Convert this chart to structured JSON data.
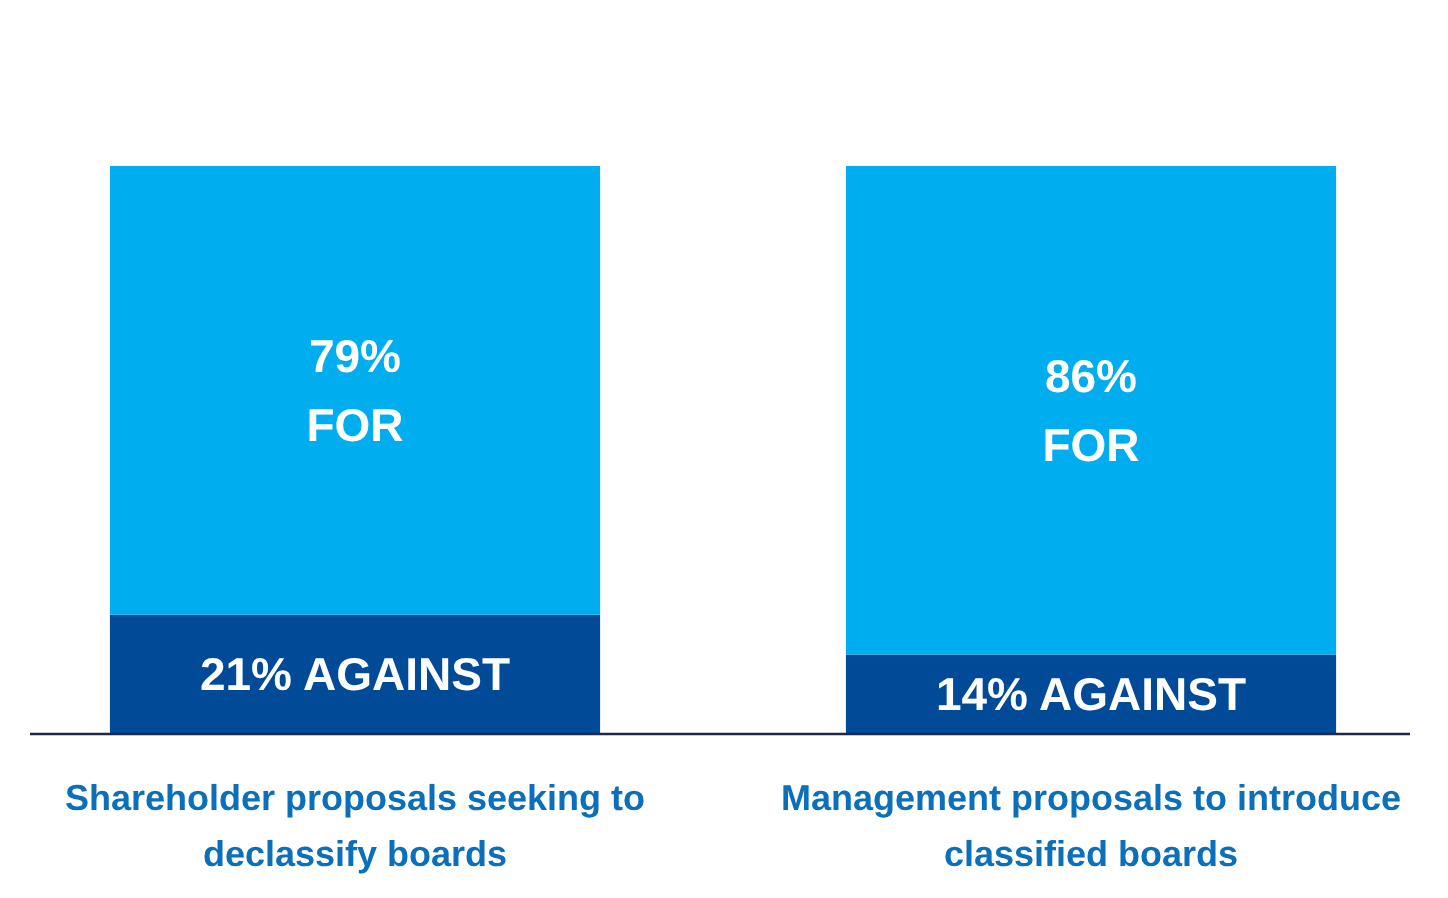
{
  "chart_data": {
    "type": "bar",
    "stacked": true,
    "categories": [
      "Shareholder proposals seeking to declassify boards",
      "Management proposals to introduce classified boards"
    ],
    "series": [
      {
        "name": "AGAINST",
        "color": "#004a98",
        "values": [
          21,
          14
        ],
        "value_labels": [
          "21%",
          "14%"
        ]
      },
      {
        "name": "FOR",
        "color": "#00aeef",
        "values": [
          79,
          86
        ],
        "value_labels": [
          "79%",
          "86%"
        ]
      }
    ]
  }
}
